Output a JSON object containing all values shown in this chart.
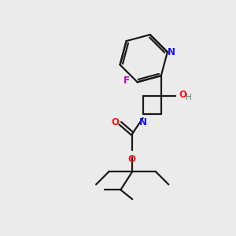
{
  "bg_color": "#ebebeb",
  "bond_color": "#1a1a1a",
  "N_color": "#1414ff",
  "O_color": "#ff1414",
  "F_color": "#bb00bb",
  "H_color": "#508080",
  "figsize": [
    3.0,
    3.0
  ],
  "dpi": 100,
  "xlim": [
    0,
    10
  ],
  "ylim": [
    0,
    10
  ]
}
